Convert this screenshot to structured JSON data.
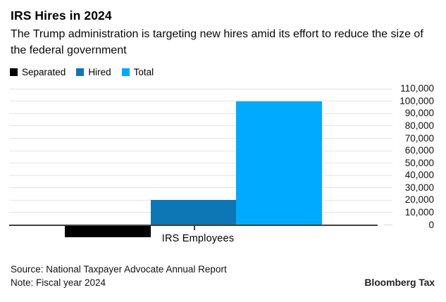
{
  "header": {
    "title": "IRS Hires in 2024",
    "subtitle": "The Trump administration is targeting new hires amid its effort to reduce the size of the federal government"
  },
  "chart_data": {
    "type": "bar",
    "title": "IRS Hires in 2024",
    "subtitle": "The Trump administration is targeting new hires amid its effort to reduce the size of the federal government",
    "categories": [
      "IRS Employees"
    ],
    "series": [
      {
        "name": "Separated",
        "values": [
          -10000
        ],
        "color": "#000000"
      },
      {
        "name": "Hired",
        "values": [
          20000
        ],
        "color": "#0d76b4"
      },
      {
        "name": "Total",
        "values": [
          100000
        ],
        "color": "#00aaff"
      }
    ],
    "xlabel": "",
    "ylabel": "",
    "ylim": [
      0,
      110000
    ],
    "ytick_step": 10000,
    "ytick_labels": [
      "0",
      "10,000",
      "20,000",
      "30,000",
      "40,000",
      "50,000",
      "60,000",
      "70,000",
      "80,000",
      "90,000",
      "100,000",
      "110,000"
    ],
    "y_axis_side": "right",
    "grid": true,
    "legend_position": "top-left"
  },
  "footer": {
    "source": "Source: National Taxpayer Advocate Annual Report",
    "note": "Note: Fiscal year 2024",
    "brand": "Bloomberg Tax"
  },
  "colors": {
    "background": "#ffffff",
    "grid": "#e5e5e5",
    "axis": "#404040",
    "text": "#000000"
  }
}
